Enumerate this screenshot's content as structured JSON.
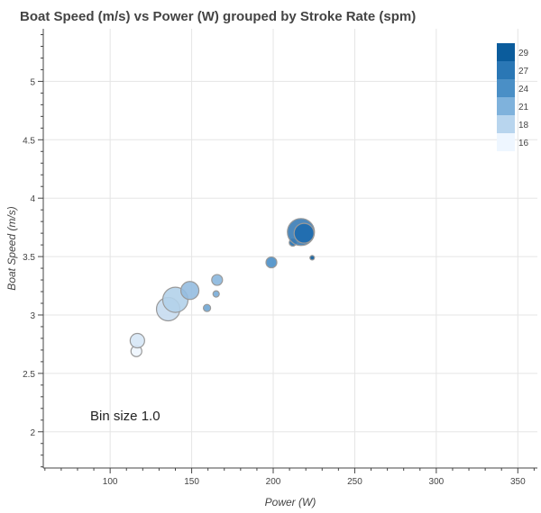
{
  "chart_data": {
    "type": "scatter",
    "title": "Boat Speed (m/s) vs Power (W) grouped by Stroke Rate (spm)",
    "xlabel": "Power (W)",
    "ylabel": "Boat Speed (m/s)",
    "xlim": [
      59,
      362
    ],
    "ylim": [
      1.69,
      5.45
    ],
    "xticks": [
      100,
      150,
      200,
      250,
      300,
      350
    ],
    "yticks": [
      2,
      2.5,
      3,
      3.5,
      4,
      4.5,
      5
    ],
    "xtick_labels": [
      "100",
      "150",
      "200",
      "250",
      "300",
      "350"
    ],
    "ytick_labels": [
      "2",
      "2.5",
      "3",
      "3.5",
      "4",
      "4.5",
      "5"
    ],
    "grid": true,
    "annotation": "Bin size 1.0",
    "legend": {
      "placement": "top-right",
      "entries": [
        {
          "label": "29",
          "color": "#0b5c9c"
        },
        {
          "label": "27",
          "color": "#2a77b5"
        },
        {
          "label": "24",
          "color": "#4a8fc6"
        },
        {
          "label": "21",
          "color": "#7fb2dc"
        },
        {
          "label": "18",
          "color": "#b8d5ee"
        },
        {
          "label": "16",
          "color": "#eef6ff"
        }
      ]
    },
    "points": [
      {
        "x": 116.1,
        "y": 2.69,
        "size": 6,
        "color": "#eef6ff"
      },
      {
        "x": 116.7,
        "y": 2.78,
        "size": 8,
        "color": "#d6e7f6"
      },
      {
        "x": 135.6,
        "y": 3.05,
        "size": 13,
        "color": "#c6dbef"
      },
      {
        "x": 140.0,
        "y": 3.13,
        "size": 14,
        "color": "#b3d1ea"
      },
      {
        "x": 148.9,
        "y": 3.21,
        "size": 10,
        "color": "#95bde0"
      },
      {
        "x": 159.4,
        "y": 3.06,
        "size": 4,
        "color": "#6fa6d4"
      },
      {
        "x": 165.0,
        "y": 3.18,
        "size": 3.5,
        "color": "#78acd8"
      },
      {
        "x": 165.6,
        "y": 3.3,
        "size": 6,
        "color": "#8ab7de"
      },
      {
        "x": 198.9,
        "y": 3.45,
        "size": 6,
        "color": "#4a8fc8"
      },
      {
        "x": 212.0,
        "y": 3.62,
        "size": 4,
        "color": "#1f6fb0"
      },
      {
        "x": 217.0,
        "y": 3.71,
        "size": 15,
        "color": "#3a7cb6"
      },
      {
        "x": 218.9,
        "y": 3.7,
        "size": 11,
        "color": "#1e6cae"
      },
      {
        "x": 223.9,
        "y": 3.49,
        "size": 2.5,
        "color": "#0a5a9a"
      }
    ]
  }
}
